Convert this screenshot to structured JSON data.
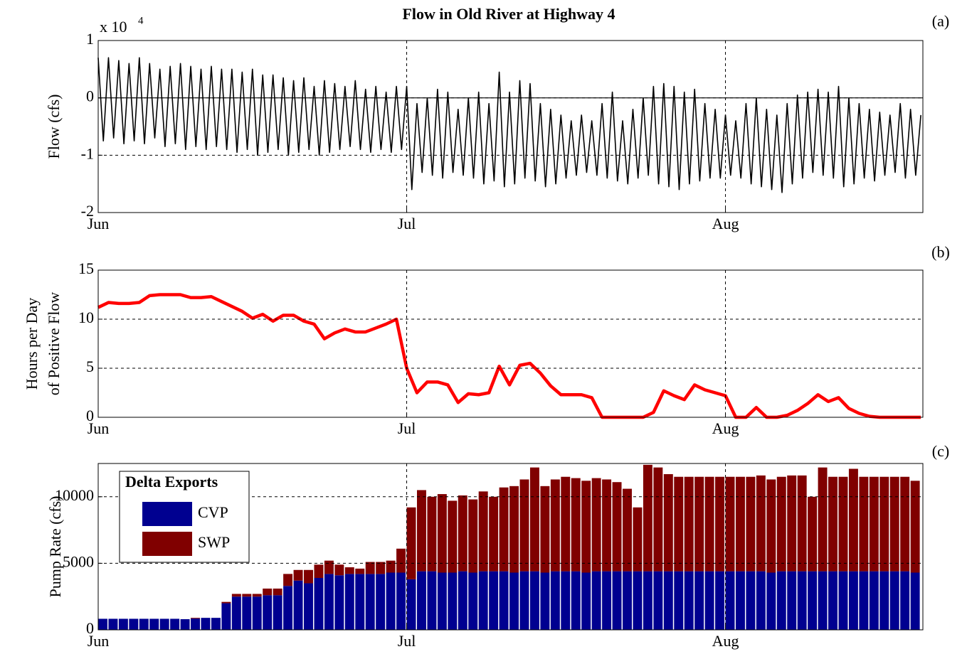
{
  "chart_data": [
    {
      "type": "line",
      "title": "Flow in Old River at Highway 4",
      "panel_label": "(a)",
      "ylabel": [
        "Flow (cfs)"
      ],
      "y_multiplier": "x 10",
      "y_multiplier_exp": "4",
      "zero_line": true,
      "grid": true,
      "color": "#000000",
      "xlim": [
        0,
        80.2
      ],
      "xticks": [
        {
          "value": 0,
          "label": "Jun"
        },
        {
          "value": 30,
          "label": "Jul"
        },
        {
          "value": 61,
          "label": "Aug"
        }
      ],
      "ylim": [
        -2,
        1
      ],
      "yticks": [
        -2,
        -1,
        0,
        1
      ],
      "x": [
        0,
        0.5,
        1,
        1.5,
        2,
        2.5,
        3,
        3.5,
        4,
        4.5,
        5,
        5.5,
        6,
        6.5,
        7,
        7.5,
        8,
        8.5,
        9,
        9.5,
        10,
        10.5,
        11,
        11.5,
        12,
        12.5,
        13,
        13.5,
        14,
        14.5,
        15,
        15.5,
        16,
        16.5,
        17,
        17.5,
        18,
        18.5,
        19,
        19.5,
        20,
        20.5,
        21,
        21.5,
        22,
        22.5,
        23,
        23.5,
        24,
        24.5,
        25,
        25.5,
        26,
        26.5,
        27,
        27.5,
        28,
        28.5,
        29,
        29.5,
        30,
        30.5,
        31,
        31.5,
        32,
        32.5,
        33,
        33.5,
        34,
        34.5,
        35,
        35.5,
        36,
        36.5,
        37,
        37.5,
        38,
        38.5,
        39,
        39.5,
        40,
        40.5,
        41,
        41.5,
        42,
        42.5,
        43,
        43.5,
        44,
        44.5,
        45,
        45.5,
        46,
        46.5,
        47,
        47.5,
        48,
        48.5,
        49,
        49.5,
        50,
        50.5,
        51,
        51.5,
        52,
        52.5,
        53,
        53.5,
        54,
        54.5,
        55,
        55.5,
        56,
        56.5,
        57,
        57.5,
        58,
        58.5,
        59,
        59.5,
        60,
        60.5,
        61,
        61.5,
        62,
        62.5,
        63,
        63.5,
        64,
        64.5,
        65,
        65.5,
        66,
        66.5,
        67,
        67.5,
        68,
        68.5,
        69,
        69.5,
        70,
        70.5,
        71,
        71.5,
        72,
        72.5,
        73,
        73.5,
        74,
        74.5,
        75,
        75.5,
        76,
        76.5,
        77,
        77.5,
        78,
        78.5,
        79,
        79.5,
        80
      ],
      "values": [
        0.7,
        -0.75,
        0.7,
        -0.7,
        0.65,
        -0.8,
        0.6,
        -0.75,
        0.7,
        -0.8,
        0.6,
        -0.7,
        0.5,
        -0.85,
        0.55,
        -0.8,
        0.6,
        -0.9,
        0.55,
        -0.85,
        0.5,
        -0.9,
        0.55,
        -0.85,
        0.5,
        -0.9,
        0.5,
        -0.95,
        0.45,
        -0.9,
        0.5,
        -1.0,
        0.4,
        -0.95,
        0.4,
        -0.9,
        0.35,
        -1.0,
        0.3,
        -0.95,
        0.35,
        -0.9,
        0.2,
        -1.0,
        0.3,
        -0.95,
        0.25,
        -0.9,
        0.2,
        -0.85,
        0.3,
        -0.9,
        0.15,
        -0.95,
        0.2,
        -0.9,
        0.1,
        -0.95,
        0.2,
        -0.9,
        0.2,
        -1.6,
        -0.1,
        -1.3,
        0.0,
        -1.35,
        0.15,
        -1.4,
        0.1,
        -1.3,
        -0.2,
        -1.35,
        0.0,
        -1.4,
        0.1,
        -1.5,
        -0.1,
        -1.45,
        0.45,
        -1.55,
        0.1,
        -1.5,
        0.3,
        -1.4,
        0.25,
        -1.45,
        -0.1,
        -1.55,
        -0.2,
        -1.5,
        -0.3,
        -1.4,
        -0.4,
        -1.35,
        -0.3,
        -1.3,
        -0.4,
        -1.35,
        -0.1,
        -1.4,
        0.1,
        -1.45,
        -0.4,
        -1.5,
        -0.2,
        -1.4,
        0.0,
        -1.35,
        0.2,
        -1.5,
        0.25,
        -1.55,
        0.2,
        -1.6,
        0.1,
        -1.5,
        0.15,
        -1.45,
        -0.1,
        -1.4,
        -0.2,
        -1.4,
        -0.3,
        -1.35,
        -0.4,
        -1.4,
        -0.1,
        -1.5,
        0.0,
        -1.55,
        -0.2,
        -1.6,
        -0.3,
        -1.65,
        -0.1,
        -1.5,
        0.05,
        -1.4,
        0.1,
        -1.3,
        0.15,
        -1.35,
        0.1,
        -1.4,
        0.2,
        -1.55,
        0.0,
        -1.5,
        -0.1,
        -1.4,
        -0.2,
        -1.45,
        -0.25,
        -1.35,
        -0.3,
        -1.3,
        -0.1,
        -1.4,
        -0.2,
        -1.35,
        -0.3
      ]
    },
    {
      "type": "line",
      "panel_label": "(b)",
      "ylabel": [
        "Hours per Day",
        "of Positive Flow"
      ],
      "grid": true,
      "color": "#ff0000",
      "xlim": [
        0,
        80.2
      ],
      "xticks": [
        {
          "value": 0,
          "label": "Jun"
        },
        {
          "value": 30,
          "label": "Jul"
        },
        {
          "value": 61,
          "label": "Aug"
        }
      ],
      "ylim": [
        0,
        15
      ],
      "yticks": [
        0,
        5,
        10,
        15
      ],
      "x": [
        0,
        1,
        2,
        3,
        4,
        5,
        6,
        7,
        8,
        9,
        10,
        11,
        12,
        13,
        14,
        15,
        16,
        17,
        18,
        19,
        20,
        21,
        22,
        23,
        24,
        25,
        26,
        27,
        28,
        29,
        30,
        31,
        32,
        33,
        34,
        35,
        36,
        37,
        38,
        39,
        40,
        41,
        42,
        43,
        44,
        45,
        46,
        47,
        48,
        49,
        50,
        51,
        52,
        53,
        54,
        55,
        56,
        57,
        58,
        59,
        60,
        61,
        62,
        63,
        64,
        65,
        66,
        67,
        68,
        69,
        70,
        71,
        72,
        73,
        74,
        75,
        76,
        77,
        78,
        79,
        80
      ],
      "values": [
        11.2,
        11.7,
        11.6,
        11.6,
        11.7,
        12.4,
        12.5,
        12.5,
        12.5,
        12.2,
        12.2,
        12.3,
        11.8,
        11.3,
        10.8,
        10.1,
        10.5,
        9.8,
        10.4,
        10.4,
        9.8,
        9.5,
        8.0,
        8.6,
        9.0,
        8.7,
        8.7,
        9.1,
        9.5,
        10.0,
        5.0,
        2.5,
        3.6,
        3.6,
        3.3,
        1.5,
        2.4,
        2.3,
        2.5,
        5.2,
        3.3,
        5.3,
        5.5,
        4.5,
        3.2,
        2.3,
        2.3,
        2.3,
        2.0,
        0,
        0,
        0,
        0,
        0,
        0.5,
        2.7,
        2.2,
        1.8,
        3.3,
        2.8,
        2.5,
        2.2,
        0,
        0,
        1.0,
        0,
        0,
        0.2,
        0.7,
        1.4,
        2.3,
        1.6,
        2.0,
        0.9,
        0.4,
        0.1,
        0,
        0,
        0,
        0,
        0
      ]
    },
    {
      "type": "bar",
      "stacked": true,
      "panel_label": "(c)",
      "ylabel": [
        "Pump Rate (cfs)"
      ],
      "grid": true,
      "legend_title": "Delta Exports",
      "legend": "upper left",
      "xlim": [
        0,
        80.2
      ],
      "xticks": [
        {
          "value": 0,
          "label": "Jun"
        },
        {
          "value": 30,
          "label": "Jul"
        },
        {
          "value": 61,
          "label": "Aug"
        }
      ],
      "ylim": [
        0,
        12500
      ],
      "yticks": [
        0,
        5000,
        10000
      ],
      "x": [
        0,
        1,
        2,
        3,
        4,
        5,
        6,
        7,
        8,
        9,
        10,
        11,
        12,
        13,
        14,
        15,
        16,
        17,
        18,
        19,
        20,
        21,
        22,
        23,
        24,
        25,
        26,
        27,
        28,
        29,
        30,
        31,
        32,
        33,
        34,
        35,
        36,
        37,
        38,
        39,
        40,
        41,
        42,
        43,
        44,
        45,
        46,
        47,
        48,
        49,
        50,
        51,
        52,
        53,
        54,
        55,
        56,
        57,
        58,
        59,
        60,
        61,
        62,
        63,
        64,
        65,
        66,
        67,
        68,
        69,
        70,
        71,
        72,
        73,
        74,
        75,
        76,
        77,
        78,
        79
      ],
      "series": [
        {
          "name": "CVP",
          "color": "#000090",
          "values": [
            830,
            830,
            830,
            830,
            830,
            830,
            830,
            830,
            800,
            850,
            900,
            900,
            2000,
            2500,
            2500,
            2500,
            2600,
            2600,
            3300,
            3700,
            3500,
            3900,
            4200,
            4100,
            4200,
            4200,
            4200,
            4200,
            4300,
            4300,
            3800,
            4400,
            4400,
            4300,
            4300,
            4400,
            4300,
            4400,
            4400,
            4400,
            4300,
            4400,
            4400,
            4300,
            4400,
            4400,
            4400,
            4300,
            4400,
            4400,
            4400,
            4400,
            4400,
            4400,
            4400,
            4400,
            4400,
            4400,
            4400,
            4400,
            4400,
            4400,
            4400,
            4400,
            4400,
            4300,
            4400,
            4400,
            4400,
            4400,
            4400,
            4400,
            4400,
            4400,
            4400,
            4400,
            4400,
            4400,
            4400,
            4300
          ]
        },
        {
          "name": "SWP",
          "color": "#800000",
          "values": [
            0,
            0,
            0,
            0,
            0,
            0,
            0,
            0,
            0,
            50,
            0,
            0,
            100,
            200,
            200,
            200,
            500,
            500,
            900,
            800,
            1000,
            1000,
            1000,
            800,
            500,
            400,
            900,
            900,
            900,
            1800,
            5400,
            6100,
            5600,
            5900,
            5400,
            5700,
            5500,
            6000,
            5600,
            6300,
            6500,
            6900,
            7800,
            6500,
            6900,
            7100,
            7000,
            6900,
            7000,
            6900,
            6700,
            6200,
            4800,
            8000,
            7800,
            7300,
            7100,
            7100,
            7100,
            7100,
            7100,
            7100,
            7100,
            7100,
            7200,
            7000,
            7100,
            7200,
            7200,
            5600,
            7800,
            7100,
            7100,
            7700,
            7100,
            7100,
            7100,
            7100,
            7100,
            6900
          ]
        }
      ]
    }
  ]
}
